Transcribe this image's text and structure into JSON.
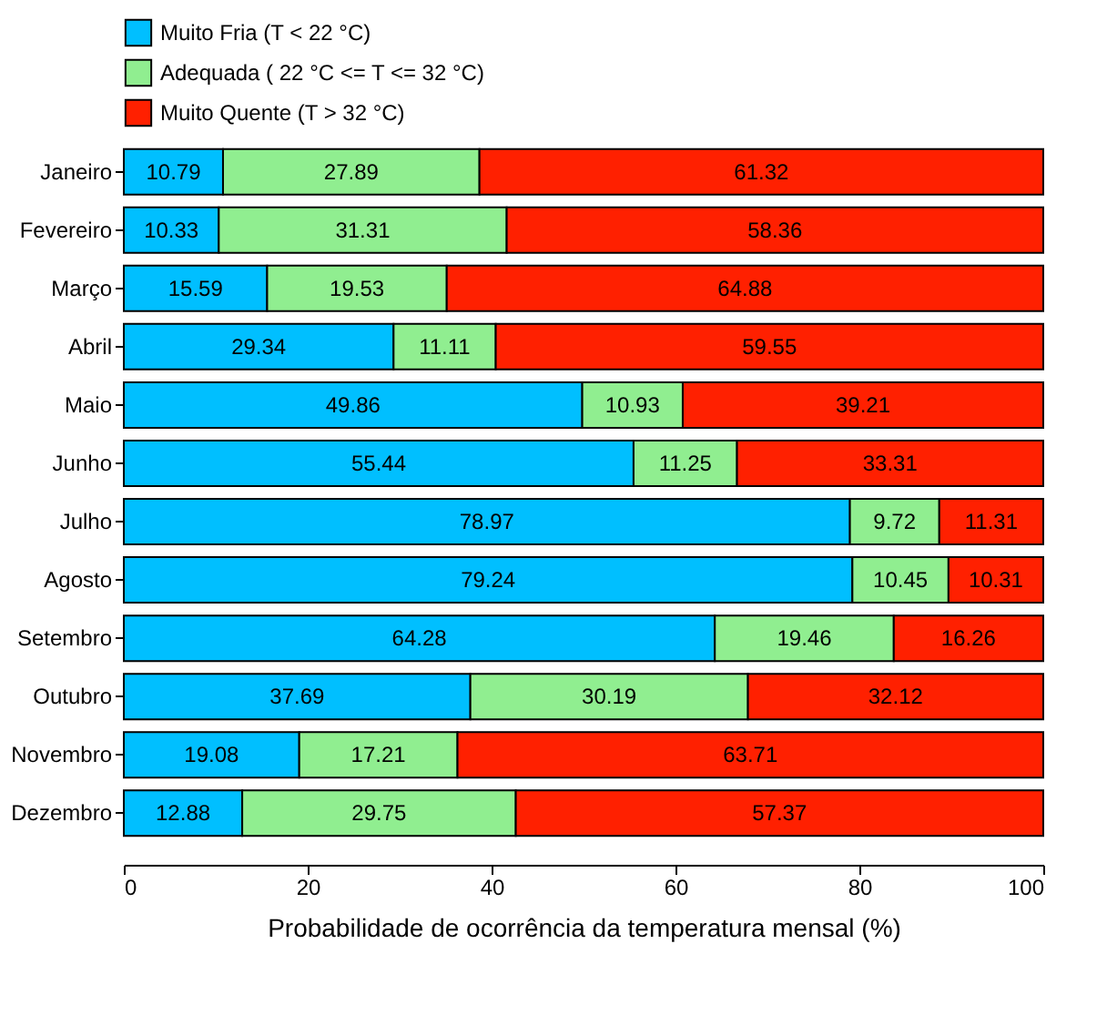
{
  "chart_data": {
    "type": "bar",
    "orientation": "horizontal",
    "stacked": true,
    "data_labels": true,
    "legend": "top",
    "xlabel": "Probabilidade de ocorrência da temperatura mensal (%)",
    "xlim": [
      0,
      100
    ],
    "xticks": [
      0,
      20,
      40,
      60,
      80,
      100
    ],
    "grid": false,
    "categories": [
      "Janeiro",
      "Fevereiro",
      "Março",
      "Abril",
      "Maio",
      "Junho",
      "Julho",
      "Agosto",
      "Setembro",
      "Outubro",
      "Novembro",
      "Dezembro"
    ],
    "series": [
      {
        "name": "Muito Fria (T < 22 °C)",
        "color": "#00bfff",
        "values": [
          10.79,
          10.33,
          15.59,
          29.34,
          49.86,
          55.44,
          78.97,
          79.24,
          64.28,
          37.69,
          19.08,
          12.88
        ]
      },
      {
        "name": "Adequada ( 22 °C <= T <= 32 °C)",
        "color": "#90ee90",
        "values": [
          27.89,
          31.31,
          19.53,
          11.11,
          10.93,
          11.25,
          9.72,
          10.45,
          19.46,
          30.19,
          17.21,
          29.75
        ]
      },
      {
        "name": "Muito Quente (T > 32 °C)",
        "color": "#ff2000",
        "values": [
          61.32,
          58.36,
          64.88,
          59.55,
          39.21,
          33.31,
          11.31,
          10.31,
          16.26,
          32.12,
          63.71,
          57.37
        ]
      }
    ]
  }
}
